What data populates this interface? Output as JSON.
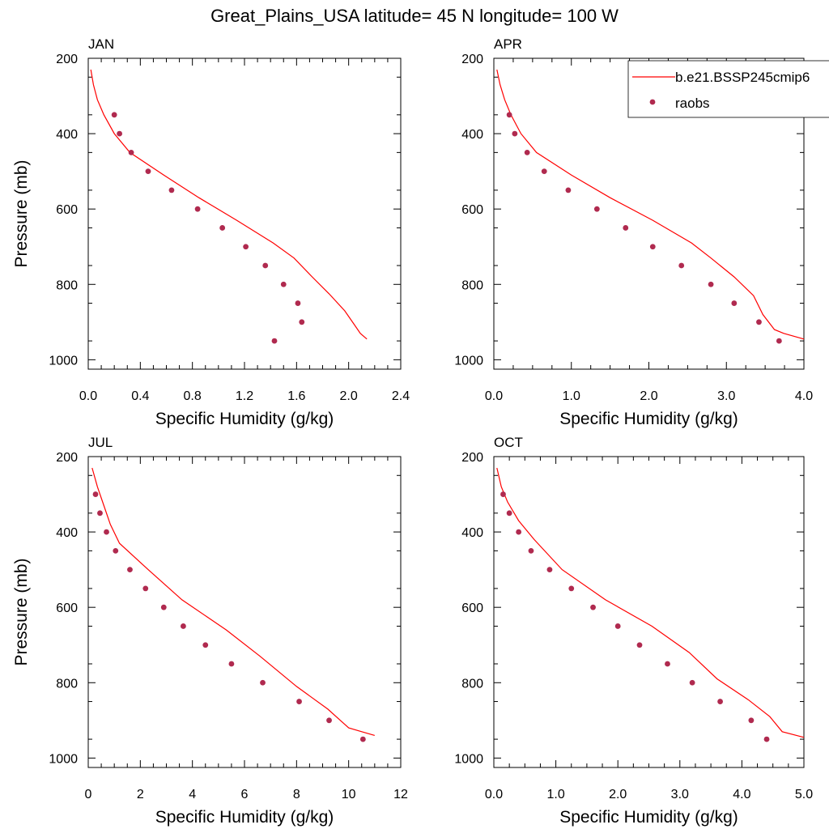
{
  "title": "Great_Plains_USA  latitude= 45 N longitude= 100 W",
  "legend": {
    "model_label": "b.e21.BSSP245cmip6",
    "obs_label": "raobs"
  },
  "colors": {
    "model": "#ff0000",
    "obs": "#b02a4f"
  },
  "chart_data": [
    {
      "type": "line",
      "title": "JAN",
      "xlabel": "Specific Humidity (g/kg)",
      "ylabel": "Pressure (mb)",
      "xlim": [
        0,
        2.4
      ],
      "ylim": [
        1025,
        200
      ],
      "y_reversed": true,
      "xticks": [
        "0.0",
        "0.4",
        "0.8",
        "1.2",
        "1.6",
        "2.0",
        "2.4"
      ],
      "yticks": [
        "200",
        "400",
        "600",
        "800",
        "1000"
      ],
      "series": [
        {
          "name": "b.e21.BSSP245cmip6",
          "kind": "line",
          "points": [
            [
              0.02,
              230
            ],
            [
              0.04,
              270
            ],
            [
              0.07,
              310
            ],
            [
              0.12,
              350
            ],
            [
              0.2,
              400
            ],
            [
              0.32,
              450
            ],
            [
              0.58,
              510
            ],
            [
              0.85,
              570
            ],
            [
              1.14,
              630
            ],
            [
              1.42,
              690
            ],
            [
              1.58,
              730
            ],
            [
              1.72,
              780
            ],
            [
              1.85,
              825
            ],
            [
              1.97,
              870
            ],
            [
              2.05,
              910
            ],
            [
              2.09,
              930
            ],
            [
              2.14,
              945
            ]
          ]
        },
        {
          "name": "raobs",
          "kind": "scatter",
          "points": [
            [
              0.2,
              350
            ],
            [
              0.24,
              400
            ],
            [
              0.33,
              450
            ],
            [
              0.46,
              500
            ],
            [
              0.64,
              550
            ],
            [
              0.84,
              600
            ],
            [
              1.03,
              650
            ],
            [
              1.21,
              700
            ],
            [
              1.36,
              750
            ],
            [
              1.5,
              800
            ],
            [
              1.61,
              850
            ],
            [
              1.64,
              900
            ],
            [
              1.43,
              950
            ]
          ]
        }
      ]
    },
    {
      "type": "line",
      "title": "APR",
      "xlabel": "Specific Humidity (g/kg)",
      "ylabel": "",
      "xlim": [
        0,
        4.0
      ],
      "ylim": [
        1025,
        200
      ],
      "y_reversed": true,
      "xticks": [
        "0.0",
        "1.0",
        "2.0",
        "3.0",
        "4.0"
      ],
      "yticks": [
        "200",
        "400",
        "600",
        "800",
        "1000"
      ],
      "series": [
        {
          "name": "b.e21.BSSP245cmip6",
          "kind": "line",
          "points": [
            [
              0.04,
              230
            ],
            [
              0.08,
              270
            ],
            [
              0.14,
              310
            ],
            [
              0.22,
              350
            ],
            [
              0.35,
              400
            ],
            [
              0.55,
              450
            ],
            [
              1.0,
              510
            ],
            [
              1.5,
              570
            ],
            [
              2.05,
              630
            ],
            [
              2.55,
              690
            ],
            [
              2.8,
              730
            ],
            [
              3.1,
              780
            ],
            [
              3.35,
              830
            ],
            [
              3.47,
              880
            ],
            [
              3.62,
              920
            ],
            [
              3.74,
              930
            ],
            [
              4.0,
              945
            ]
          ]
        },
        {
          "name": "raobs",
          "kind": "scatter",
          "points": [
            [
              0.2,
              350
            ],
            [
              0.27,
              400
            ],
            [
              0.43,
              450
            ],
            [
              0.65,
              500
            ],
            [
              0.96,
              550
            ],
            [
              1.33,
              600
            ],
            [
              1.7,
              650
            ],
            [
              2.05,
              700
            ],
            [
              2.42,
              750
            ],
            [
              2.8,
              800
            ],
            [
              3.1,
              850
            ],
            [
              3.42,
              900
            ],
            [
              3.68,
              950
            ]
          ]
        }
      ]
    },
    {
      "type": "line",
      "title": "JUL",
      "xlabel": "Specific Humidity (g/kg)",
      "ylabel": "Pressure (mb)",
      "xlim": [
        0,
        12
      ],
      "ylim": [
        1025,
        200
      ],
      "y_reversed": true,
      "xticks": [
        "0",
        "2",
        "4",
        "6",
        "8",
        "10",
        "12"
      ],
      "yticks": [
        "200",
        "400",
        "600",
        "800",
        "1000"
      ],
      "series": [
        {
          "name": "b.e21.BSSP245cmip6",
          "kind": "line",
          "points": [
            [
              0.15,
              230
            ],
            [
              0.35,
              280
            ],
            [
              0.6,
              330
            ],
            [
              0.85,
              380
            ],
            [
              1.2,
              430
            ],
            [
              2.3,
              500
            ],
            [
              3.6,
              580
            ],
            [
              5.3,
              660
            ],
            [
              6.6,
              730
            ],
            [
              8.0,
              810
            ],
            [
              9.2,
              870
            ],
            [
              10.0,
              920
            ],
            [
              10.5,
              930
            ],
            [
              11.0,
              940
            ]
          ]
        },
        {
          "name": "raobs",
          "kind": "scatter",
          "points": [
            [
              0.28,
              300
            ],
            [
              0.45,
              350
            ],
            [
              0.7,
              400
            ],
            [
              1.05,
              450
            ],
            [
              1.6,
              500
            ],
            [
              2.2,
              550
            ],
            [
              2.9,
              600
            ],
            [
              3.65,
              650
            ],
            [
              4.5,
              700
            ],
            [
              5.5,
              750
            ],
            [
              6.7,
              800
            ],
            [
              8.1,
              850
            ],
            [
              9.25,
              900
            ],
            [
              10.55,
              950
            ]
          ]
        }
      ]
    },
    {
      "type": "line",
      "title": "OCT",
      "xlabel": "Specific Humidity (g/kg)",
      "ylabel": "",
      "xlim": [
        0,
        5.0
      ],
      "ylim": [
        1025,
        200
      ],
      "y_reversed": true,
      "xticks": [
        "0.0",
        "1.0",
        "2.0",
        "3.0",
        "4.0",
        "5.0"
      ],
      "yticks": [
        "200",
        "400",
        "600",
        "800",
        "1000"
      ],
      "series": [
        {
          "name": "b.e21.BSSP245cmip6",
          "kind": "line",
          "points": [
            [
              0.05,
              230
            ],
            [
              0.12,
              280
            ],
            [
              0.22,
              320
            ],
            [
              0.4,
              370
            ],
            [
              0.65,
              420
            ],
            [
              1.1,
              500
            ],
            [
              1.8,
              580
            ],
            [
              2.55,
              650
            ],
            [
              3.15,
              720
            ],
            [
              3.6,
              790
            ],
            [
              4.1,
              845
            ],
            [
              4.45,
              890
            ],
            [
              4.65,
              930
            ],
            [
              5.0,
              945
            ]
          ]
        },
        {
          "name": "raobs",
          "kind": "scatter",
          "points": [
            [
              0.15,
              300
            ],
            [
              0.25,
              350
            ],
            [
              0.4,
              400
            ],
            [
              0.6,
              450
            ],
            [
              0.9,
              500
            ],
            [
              1.25,
              550
            ],
            [
              1.6,
              600
            ],
            [
              2.0,
              650
            ],
            [
              2.35,
              700
            ],
            [
              2.8,
              750
            ],
            [
              3.2,
              800
            ],
            [
              3.65,
              850
            ],
            [
              4.15,
              900
            ],
            [
              4.4,
              950
            ]
          ]
        }
      ]
    }
  ]
}
